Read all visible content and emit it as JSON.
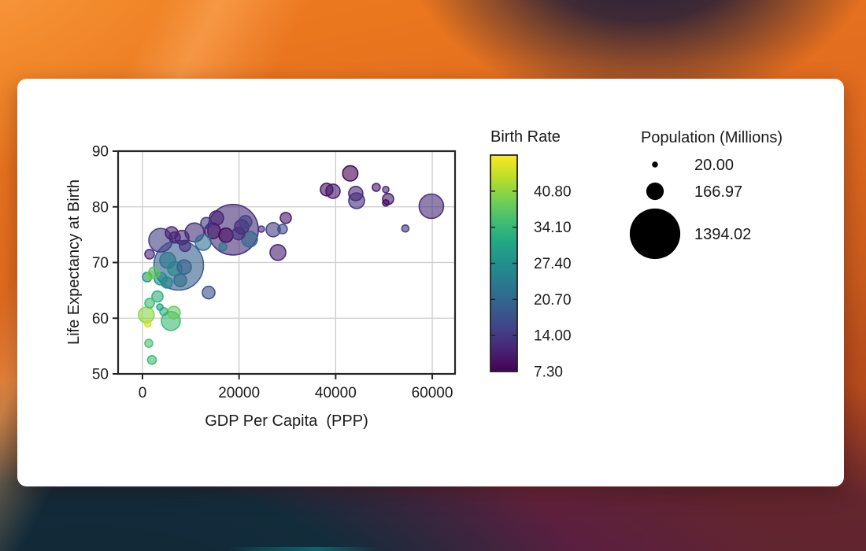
{
  "window": {
    "kind": "chart figure on desktop wallpaper",
    "card_bg": "#ffffff"
  },
  "colors": {
    "axis": "#262626",
    "grid": "#cccccc",
    "text": "#1a1a1a",
    "legend_circle": "#000000",
    "wallpaper": {
      "orange_bright": "#f28b2d",
      "orange_base": "#c2571d",
      "dark_navy": "#201d39",
      "navy_teal": "#112634",
      "plum": "#5a1f41",
      "maroon": "#5f2430",
      "rust": "#b84a1e",
      "teal_accent": "#14616b"
    }
  },
  "chart_data": {
    "type": "scatter",
    "subtype": "bubble",
    "title": "",
    "xlabel": "GDP Per Capita  (PPP)",
    "ylabel": "Life Expectancy at Birth",
    "x_tick_labels": [
      "0",
      "20000",
      "40000",
      "60000"
    ],
    "x_tick_values": [
      0,
      20000,
      40000,
      60000
    ],
    "y_tick_labels": [
      "50",
      "60",
      "70",
      "80",
      "90"
    ],
    "y_tick_values": [
      50,
      60,
      70,
      80,
      90
    ],
    "xlim": [
      -5050,
      64720
    ],
    "ylim": [
      50,
      90
    ],
    "grid": true,
    "color_encoding": {
      "title": "Birth Rate",
      "colormap": "viridis",
      "domain": [
        7.3,
        47.5
      ],
      "tick_values": [
        40.8,
        34.1,
        27.4,
        20.7,
        14.0,
        7.3
      ],
      "tick_labels": [
        "40.80",
        "34.10",
        "27.40",
        "20.70",
        "14.00",
        "7.30"
      ]
    },
    "size_encoding": {
      "title": "Population (Millions)",
      "legend_values": [
        20,
        166.97,
        1394.02
      ],
      "legend_labels": [
        "20.00",
        "166.97",
        "1394.02"
      ]
    },
    "points": [
      {
        "gdp": 800,
        "life": 60.6,
        "pop": 135,
        "birth": 40.5
      },
      {
        "gdp": 1100,
        "life": 59.0,
        "pop": 22,
        "birth": 44.5
      },
      {
        "gdp": 6500,
        "life": 61.0,
        "pop": 86,
        "birth": 38.0
      },
      {
        "gdp": 5870,
        "life": 59.5,
        "pop": 195,
        "birth": 34.5
      },
      {
        "gdp": 3100,
        "life": 63.9,
        "pop": 66,
        "birth": 33.0
      },
      {
        "gdp": 1470,
        "life": 62.7,
        "pop": 49,
        "birth": 35.0
      },
      {
        "gdp": 3590,
        "life": 62.0,
        "pop": 22,
        "birth": 30.0
      },
      {
        "gdp": 4400,
        "life": 61.2,
        "pop": 34,
        "birth": 33.5
      },
      {
        "gdp": 1300,
        "life": 55.5,
        "pop": 34,
        "birth": 36.0
      },
      {
        "gdp": 1960,
        "life": 52.5,
        "pop": 41,
        "birth": 35.0
      },
      {
        "gdp": 2440,
        "life": 68.2,
        "pop": 66,
        "birth": 37.0
      },
      {
        "gdp": 1630,
        "life": 67.7,
        "pop": 34,
        "birth": 39.0
      },
      {
        "gdp": 5220,
        "life": 70.4,
        "pop": 135,
        "birth": 23.0
      },
      {
        "gdp": 6680,
        "life": 68.9,
        "pop": 110,
        "birth": 25.5
      },
      {
        "gdp": 3750,
        "life": 67.1,
        "pop": 86,
        "birth": 27.0
      },
      {
        "gdp": 5050,
        "life": 66.4,
        "pop": 66,
        "birth": 26.0
      },
      {
        "gdp": 980,
        "life": 67.4,
        "pop": 49,
        "birth": 28.0
      },
      {
        "gdp": 8640,
        "life": 69.2,
        "pop": 110,
        "birth": 20.0
      },
      {
        "gdp": 7820,
        "life": 66.8,
        "pop": 86,
        "birth": 21.5
      },
      {
        "gdp": 7500,
        "life": 69.5,
        "pop": 1339,
        "birth": 19.0
      },
      {
        "gdp": 3750,
        "life": 74.0,
        "pop": 304,
        "birth": 14.5
      },
      {
        "gdp": 6030,
        "life": 75.3,
        "pop": 86,
        "birth": 11.0
      },
      {
        "gdp": 8150,
        "life": 74.5,
        "pop": 110,
        "birth": 12.0
      },
      {
        "gdp": 10760,
        "life": 75.4,
        "pop": 195,
        "birth": 12.5
      },
      {
        "gdp": 1470,
        "life": 71.5,
        "pop": 49,
        "birth": 12.0
      },
      {
        "gdp": 6680,
        "life": 74.5,
        "pop": 66,
        "birth": 11.5
      },
      {
        "gdp": 8800,
        "life": 73.0,
        "pop": 66,
        "birth": 13.0
      },
      {
        "gdp": 13690,
        "life": 64.6,
        "pop": 86,
        "birth": 17.0
      },
      {
        "gdp": 18750,
        "life": 75.9,
        "pop": 1394.02,
        "birth": 12.4
      },
      {
        "gdp": 13200,
        "life": 77.1,
        "pop": 66,
        "birth": 14.0
      },
      {
        "gdp": 15320,
        "life": 78.0,
        "pop": 110,
        "birth": 11.0
      },
      {
        "gdp": 14510,
        "life": 75.7,
        "pop": 135,
        "birth": 9.5
      },
      {
        "gdp": 17280,
        "life": 74.9,
        "pop": 110,
        "birth": 8.5
      },
      {
        "gdp": 19890,
        "life": 75.2,
        "pop": 86,
        "birth": 13.0
      },
      {
        "gdp": 21350,
        "life": 77.3,
        "pop": 86,
        "birth": 15.0
      },
      {
        "gdp": 20540,
        "life": 76.4,
        "pop": 110,
        "birth": 12.0
      },
      {
        "gdp": 12550,
        "life": 73.6,
        "pop": 135,
        "birth": 22.0
      },
      {
        "gdp": 16630,
        "life": 72.8,
        "pop": 34,
        "birth": 24.0
      },
      {
        "gdp": 22170,
        "life": 74.2,
        "pop": 135,
        "birth": 21.0
      },
      {
        "gdp": 24610,
        "life": 76.0,
        "pop": 22,
        "birth": 13.0
      },
      {
        "gdp": 27060,
        "life": 75.9,
        "pop": 110,
        "birth": 15.0
      },
      {
        "gdp": 29010,
        "life": 76.0,
        "pop": 49,
        "birth": 17.0
      },
      {
        "gdp": 29670,
        "life": 78.0,
        "pop": 66,
        "birth": 10.0
      },
      {
        "gdp": 28040,
        "life": 71.8,
        "pop": 135,
        "birth": 11.0
      },
      {
        "gdp": 43030,
        "life": 86.0,
        "pop": 127,
        "birth": 7.3
      },
      {
        "gdp": 38140,
        "life": 83.1,
        "pop": 86,
        "birth": 9.0
      },
      {
        "gdp": 39450,
        "life": 82.8,
        "pop": 110,
        "birth": 10.0
      },
      {
        "gdp": 44170,
        "life": 82.4,
        "pop": 110,
        "birth": 12.0
      },
      {
        "gdp": 44340,
        "life": 81.1,
        "pop": 135,
        "birth": 13.0
      },
      {
        "gdp": 48410,
        "life": 83.5,
        "pop": 34,
        "birth": 10.0
      },
      {
        "gdp": 50370,
        "life": 83.1,
        "pop": 22,
        "birth": 12.0
      },
      {
        "gdp": 50860,
        "life": 81.4,
        "pop": 66,
        "birth": 10.0
      },
      {
        "gdp": 50370,
        "life": 80.7,
        "pop": 22,
        "birth": 8.5
      },
      {
        "gdp": 59820,
        "life": 80.1,
        "pop": 325,
        "birth": 12.0
      },
      {
        "gdp": 54440,
        "life": 76.1,
        "pop": 27,
        "birth": 14.0
      }
    ]
  }
}
